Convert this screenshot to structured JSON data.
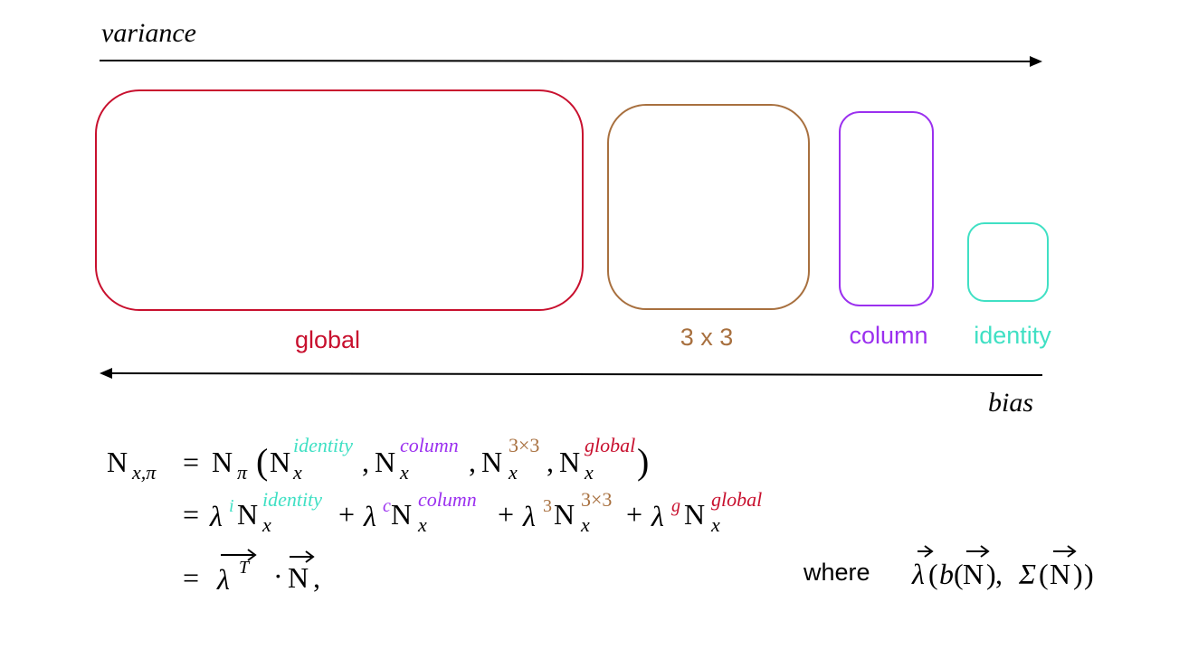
{
  "arrows": {
    "top_label": "variance",
    "bottom_label": "bias"
  },
  "boxes": [
    {
      "label": "global",
      "color": "#c8102e"
    },
    {
      "label": "3 x 3",
      "color": "#a8703f"
    },
    {
      "label": "column",
      "color": "#9b30ef"
    },
    {
      "label": "identity",
      "color": "#40e0c4"
    }
  ],
  "equation": {
    "lhs": "N",
    "lhs_sub": "x,π",
    "eq": "=",
    "line1": {
      "fn": "N",
      "fn_sub": "π",
      "sup_identity": "identity",
      "sup_column": "column",
      "sup_3x3": "3×3",
      "sup_global": "global",
      "sub_x": "x"
    },
    "line2": {
      "lam": "λ",
      "sup_i": "i",
      "sup_c": "c",
      "sup_3": "3",
      "sup_g": "g",
      "sup_identity": "identity",
      "sup_column": "column",
      "sup_3x3": "3×3",
      "sup_global": "global",
      "plus": "+"
    },
    "line3": {
      "lam": "λ",
      "T": "T",
      "dot": "·",
      "N": "N",
      "comma": ","
    },
    "where": {
      "word": "where",
      "expr_lam": "λ",
      "expr_b": "b",
      "expr_N": "N",
      "expr_sigma": "Σ",
      "open_paren": "(",
      "close_paren": ")",
      "comma": ","
    }
  },
  "colors": {
    "text": "#000000",
    "global": "#c8102e",
    "three": "#a8703f",
    "column": "#9b30ef",
    "identity": "#40e0c4"
  }
}
